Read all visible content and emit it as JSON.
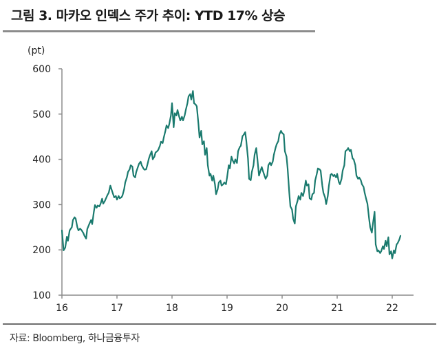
{
  "figure": {
    "title": "그림 3. 마카오 인덱스 주가 추이: YTD 17% 상승",
    "source": "자료: Bloomberg, 하나금융투자"
  },
  "style": {
    "line_color": "#1a7a6e",
    "axis_color": "#8c8c8c"
  },
  "chart_data": {
    "type": "line",
    "title": "그림 3. 마카오 인덱스 주가 추이: YTD 17% 상승",
    "xlabel": "",
    "ylabel": "(pt)",
    "unit_label": "(pt)",
    "xlim": [
      16,
      22.6
    ],
    "ylim": [
      100,
      600
    ],
    "x_ticks": [
      16,
      17,
      18,
      19,
      20,
      21,
      22
    ],
    "x_tick_labels": [
      "16",
      "17",
      "18",
      "19",
      "20",
      "21",
      "22"
    ],
    "y_ticks": [
      100,
      200,
      300,
      400,
      500,
      600
    ],
    "y_tick_labels": [
      "100",
      "200",
      "300",
      "400",
      "500",
      "600"
    ],
    "grid": false,
    "legend": "none",
    "series": [
      {
        "name": "마카오 인덱스",
        "x": [
          16.0,
          16.03,
          16.06,
          16.09,
          16.11,
          16.14,
          16.18,
          16.2,
          16.23,
          16.25,
          16.28,
          16.3,
          16.33,
          16.36,
          16.39,
          16.41,
          16.44,
          16.46,
          16.5,
          16.53,
          16.55,
          16.58,
          16.6,
          16.63,
          16.65,
          16.68,
          16.7,
          16.73,
          16.75,
          16.78,
          16.83,
          16.85,
          16.88,
          16.9,
          16.93,
          16.95,
          16.98,
          17.0,
          17.03,
          17.05,
          17.08,
          17.1,
          17.13,
          17.15,
          17.18,
          17.2,
          17.23,
          17.25,
          17.28,
          17.3,
          17.33,
          17.35,
          17.38,
          17.4,
          17.43,
          17.45,
          17.48,
          17.5,
          17.53,
          17.55,
          17.58,
          17.6,
          17.63,
          17.65,
          17.68,
          17.7,
          17.73,
          17.75,
          17.78,
          17.8,
          17.83,
          17.85,
          17.88,
          17.9,
          17.93,
          17.95,
          17.98,
          18.0,
          18.03,
          18.05,
          18.08,
          18.1,
          18.13,
          18.15,
          18.18,
          18.2,
          18.23,
          18.25,
          18.28,
          18.3,
          18.33,
          18.35,
          18.38,
          18.4,
          18.43,
          18.45,
          18.48,
          18.5,
          18.53,
          18.55,
          18.58,
          18.6,
          18.63,
          18.65,
          18.68,
          18.7,
          18.73,
          18.75,
          18.78,
          18.8,
          18.83,
          18.85,
          18.88,
          18.9,
          18.93,
          18.95,
          18.98,
          19.0,
          19.03,
          19.05,
          19.08,
          19.1,
          19.13,
          19.15,
          19.18,
          19.2,
          19.23,
          19.25,
          19.28,
          19.3,
          19.33,
          19.35,
          19.38,
          19.4,
          19.43,
          19.45,
          19.48,
          19.5,
          19.53,
          19.55,
          19.58,
          19.6,
          19.63,
          19.65,
          19.68,
          19.7,
          19.73,
          19.75,
          19.78,
          19.8,
          19.83,
          19.85,
          19.88,
          19.9,
          19.93,
          19.95,
          19.98,
          20.0,
          20.03,
          20.05,
          20.08,
          20.1,
          20.13,
          20.15,
          20.18,
          20.2,
          20.23,
          20.25,
          20.28,
          20.3,
          20.33,
          20.35,
          20.38,
          20.4,
          20.43,
          20.45,
          20.48,
          20.5,
          20.53,
          20.55,
          20.58,
          20.6,
          20.63,
          20.65,
          20.68,
          20.7,
          20.73,
          20.75,
          20.78,
          20.8,
          20.83,
          20.85,
          20.88,
          20.9,
          20.93,
          20.95,
          20.98,
          21.0,
          21.03,
          21.05,
          21.08,
          21.1,
          21.13,
          21.15,
          21.18,
          21.2,
          21.23,
          21.25,
          21.28,
          21.3,
          21.33,
          21.35,
          21.38,
          21.4,
          21.43,
          21.45,
          21.48,
          21.5,
          21.53,
          21.55,
          21.58,
          21.6,
          21.63,
          21.65,
          21.68,
          21.7,
          21.73,
          21.75,
          21.78,
          21.8,
          21.83,
          21.85,
          21.88,
          21.9,
          21.93,
          21.95,
          21.98,
          22.0,
          22.03,
          22.05,
          22.08,
          22.1,
          22.13,
          22.15
        ],
        "values": [
          243,
          199,
          205,
          229,
          220,
          243,
          250,
          266,
          272,
          269,
          250,
          243,
          247,
          243,
          237,
          231,
          225,
          246,
          258,
          266,
          257,
          284,
          299,
          293,
          298,
          296,
          301,
          313,
          302,
          308,
          322,
          326,
          342,
          334,
          323,
          316,
          319,
          311,
          319,
          314,
          316,
          320,
          334,
          349,
          360,
          372,
          378,
          387,
          384,
          364,
          360,
          372,
          383,
          390,
          395,
          387,
          380,
          377,
          378,
          387,
          402,
          409,
          418,
          400,
          406,
          415,
          418,
          421,
          430,
          439,
          436,
          448,
          463,
          475,
          469,
          478,
          497,
          524,
          471,
          502,
          497,
          509,
          494,
          486,
          494,
          486,
          497,
          509,
          524,
          539,
          544,
          532,
          551,
          524,
          521,
          517,
          478,
          448,
          463,
          433,
          440,
          410,
          425,
          387,
          364,
          368,
          353,
          364,
          345,
          323,
          334,
          349,
          353,
          342,
          345,
          349,
          345,
          360,
          387,
          380,
          406,
          398,
          391,
          400,
          392,
          418,
          427,
          430,
          451,
          454,
          460,
          440,
          402,
          357,
          354,
          372,
          387,
          410,
          425,
          402,
          364,
          372,
          383,
          375,
          364,
          357,
          364,
          387,
          393,
          387,
          395,
          410,
          425,
          433,
          440,
          455,
          463,
          458,
          455,
          418,
          406,
          380,
          326,
          296,
          289,
          269,
          258,
          296,
          308,
          319,
          311,
          326,
          319,
          329,
          353,
          342,
          345,
          314,
          311,
          323,
          326,
          353,
          368,
          380,
          378,
          375,
          342,
          326,
          316,
          301,
          319,
          342,
          366,
          368,
          363,
          366,
          360,
          368,
          350,
          345,
          357,
          375,
          387,
          418,
          421,
          425,
          418,
          421,
          402,
          400,
          387,
          364,
          357,
          360,
          354,
          345,
          339,
          326,
          311,
          302,
          269,
          250,
          238,
          258,
          284,
          212,
          197,
          199,
          193,
          197,
          208,
          202,
          220,
          208,
          228,
          190,
          197,
          181,
          199,
          193,
          212,
          215,
          223,
          231
        ]
      }
    ]
  }
}
